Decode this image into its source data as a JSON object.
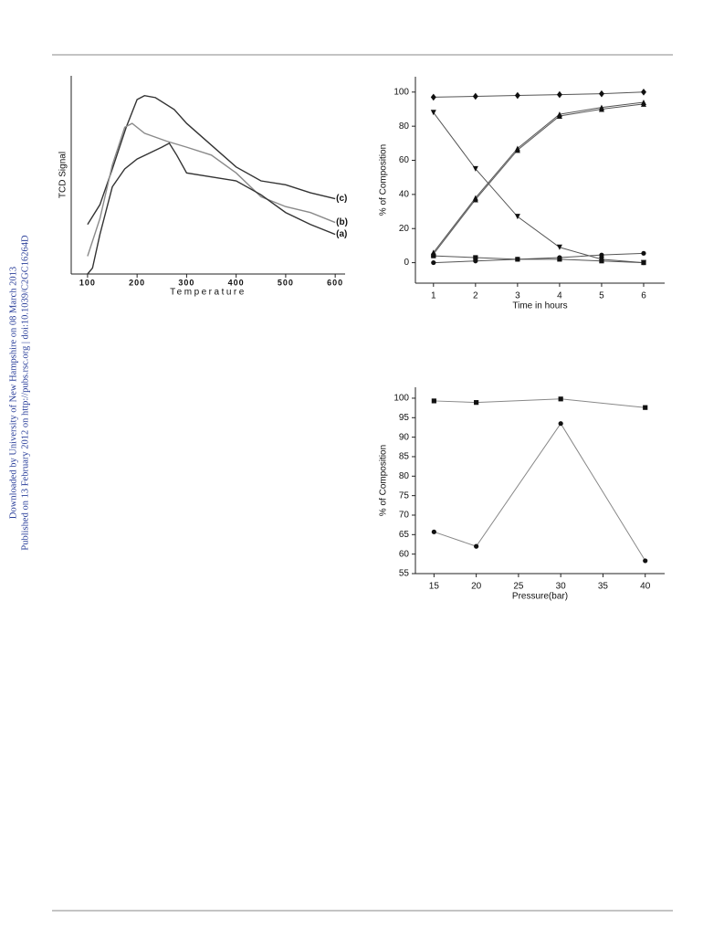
{
  "sidebar": {
    "downloaded": "Downloaded by University of New Hampshire on 08 March 2013",
    "published": "Published on 13 February 2012 on http://pubs.rsc.org | doi:10.1039/C2GC16264D"
  },
  "chart_data": [
    {
      "type": "line",
      "x_label": "Temperature",
      "y_label": "TCD Signal",
      "xlim": [
        67,
        620
      ],
      "xticks": [
        100,
        200,
        300,
        400,
        500,
        600
      ],
      "ylim": [
        0,
        100
      ],
      "series": [
        {
          "name": "(c)",
          "color": "#333333",
          "x": [
            100,
            125,
            150,
            178,
            200,
            215,
            237,
            275,
            300,
            350,
            400,
            450,
            500,
            550,
            600
          ],
          "values": [
            25,
            35,
            53,
            74,
            88,
            90,
            89,
            83,
            76,
            65,
            54,
            47,
            45,
            41,
            38
          ]
        },
        {
          "name": "(b)",
          "color": "#8a8a8a",
          "x": [
            100,
            125,
            150,
            175,
            190,
            215,
            260,
            300,
            350,
            400,
            450,
            500,
            550,
            600
          ],
          "values": [
            9,
            28,
            55,
            74,
            76,
            71,
            67,
            64,
            60,
            51,
            39,
            34,
            31,
            26
          ]
        },
        {
          "name": "(a)",
          "color": "#333333",
          "x": [
            100,
            110,
            125,
            150,
            175,
            200,
            225,
            250,
            265,
            280,
            300,
            350,
            400,
            450,
            500,
            550,
            600
          ],
          "values": [
            0,
            3,
            20,
            44,
            53,
            58,
            61,
            64,
            66,
            60,
            51,
            49,
            47,
            40,
            31,
            25,
            20
          ]
        }
      ]
    },
    {
      "type": "line",
      "x_label": "Time in hours",
      "y_label": "% of Composition",
      "xlim": [
        0.57,
        6.5
      ],
      "xticks": [
        1,
        2,
        3,
        4,
        5,
        6
      ],
      "ylim": [
        -12,
        109
      ],
      "yticks": [
        0,
        20,
        40,
        60,
        80,
        100
      ],
      "x": [
        1,
        2,
        3,
        4,
        5,
        6
      ],
      "series": [
        {
          "marker": "diamond",
          "color": "#555555",
          "values": [
            97,
            97.5,
            98,
            98.5,
            99,
            100
          ]
        },
        {
          "marker": "triangle-down",
          "color": "#555555",
          "values": [
            88,
            55,
            27,
            9,
            2,
            0
          ]
        },
        {
          "marker": "triangle-up",
          "color": "#555555",
          "values": [
            5,
            37,
            66,
            86,
            90,
            93
          ]
        },
        {
          "marker": "triangle-up",
          "color": "#555555",
          "values": [
            6,
            38,
            67,
            87,
            91,
            94
          ]
        },
        {
          "marker": "square",
          "color": "#555555",
          "values": [
            4,
            3,
            2,
            2,
            1,
            0
          ]
        },
        {
          "marker": "circle",
          "color": "#555555",
          "values": [
            0,
            1,
            2,
            3,
            4.5,
            5.5
          ]
        }
      ]
    },
    {
      "type": "line",
      "x_label": "Pressure(bar)",
      "y_label": "% of Composition",
      "xlim": [
        12.8,
        42.3
      ],
      "xticks": [
        15,
        20,
        25,
        30,
        35,
        40
      ],
      "ylim": [
        55,
        102.8
      ],
      "yticks": [
        55,
        60,
        65,
        70,
        75,
        80,
        85,
        90,
        95,
        100
      ],
      "x": [
        15,
        20,
        30,
        40
      ],
      "series": [
        {
          "marker": "square",
          "color": "#888888",
          "values": [
            99.3,
            98.9,
            99.8,
            97.6
          ]
        },
        {
          "marker": "circle",
          "color": "#888888",
          "values": [
            65.7,
            62,
            93.5,
            58.3
          ]
        }
      ]
    }
  ]
}
